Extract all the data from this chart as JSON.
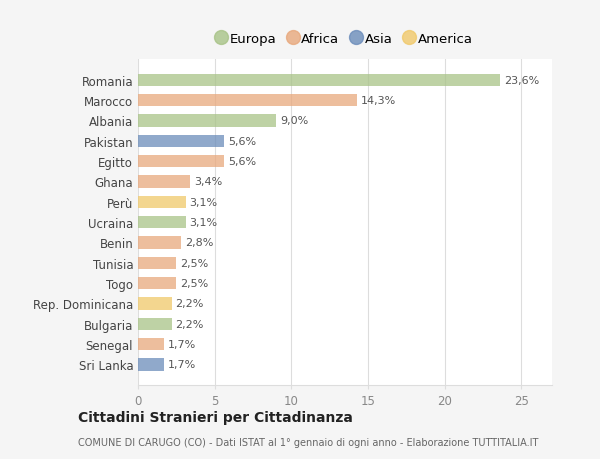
{
  "countries": [
    "Romania",
    "Marocco",
    "Albania",
    "Pakistan",
    "Egitto",
    "Ghana",
    "Perù",
    "Ucraina",
    "Benin",
    "Tunisia",
    "Togo",
    "Rep. Dominicana",
    "Bulgaria",
    "Senegal",
    "Sri Lanka"
  ],
  "values": [
    23.6,
    14.3,
    9.0,
    5.6,
    5.6,
    3.4,
    3.1,
    3.1,
    2.8,
    2.5,
    2.5,
    2.2,
    2.2,
    1.7,
    1.7
  ],
  "labels": [
    "23,6%",
    "14,3%",
    "9,0%",
    "5,6%",
    "5,6%",
    "3,4%",
    "3,1%",
    "3,1%",
    "2,8%",
    "2,5%",
    "2,5%",
    "2,2%",
    "2,2%",
    "1,7%",
    "1,7%"
  ],
  "continents": [
    "Europa",
    "Africa",
    "Europa",
    "Asia",
    "Africa",
    "Africa",
    "America",
    "Europa",
    "Africa",
    "Africa",
    "Africa",
    "America",
    "Europa",
    "Africa",
    "Asia"
  ],
  "colors": {
    "Europa": "#a8c387",
    "Africa": "#e8a87c",
    "Asia": "#6b8cba",
    "America": "#f0c96a"
  },
  "legend_order": [
    "Europa",
    "Africa",
    "Asia",
    "America"
  ],
  "title": "Cittadini Stranieri per Cittadinanza",
  "subtitle": "COMUNE DI CARUGO (CO) - Dati ISTAT al 1° gennaio di ogni anno - Elaborazione TUTTITALIA.IT",
  "xlim": [
    0,
    27
  ],
  "background_color": "#f5f5f5",
  "plot_bg_color": "#ffffff",
  "grid_color": "#dddddd",
  "label_color": "#555555",
  "tick_color": "#888888"
}
